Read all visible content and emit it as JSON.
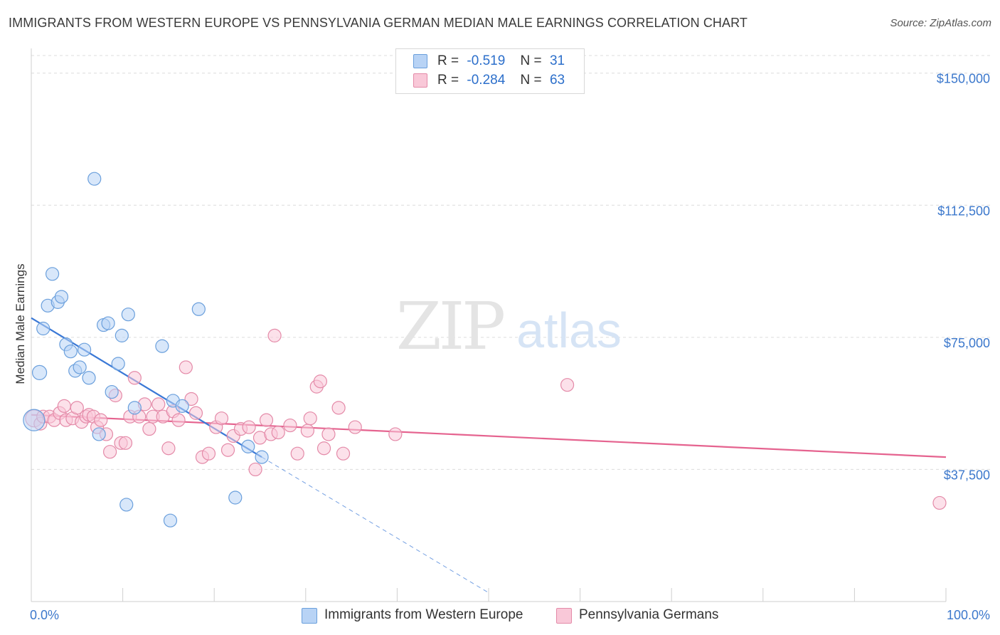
{
  "title": "IMMIGRANTS FROM WESTERN EUROPE VS PENNSYLVANIA GERMAN MEDIAN MALE EARNINGS CORRELATION CHART",
  "source": "Source: ZipAtlas.com",
  "watermark": {
    "zip": "ZIP",
    "atlas": "atlas"
  },
  "legend_top": [
    {
      "r_label": "R =",
      "r_value": "-0.519",
      "n_label": "N =",
      "n_value": "31"
    },
    {
      "r_label": "R =",
      "r_value": "-0.284",
      "n_label": "N =",
      "n_value": "63"
    }
  ],
  "colors": {
    "blue_fill": "#b8d3f5",
    "blue_stroke": "#6a9fdc",
    "blue_line": "#3a78d6",
    "pink_fill": "#f9c8d8",
    "pink_stroke": "#e48aa8",
    "pink_line": "#e5638f",
    "tick_label": "#3c78cc",
    "grid": "#dcdcdc"
  },
  "chart_data": {
    "type": "scatter",
    "title": "IMMIGRANTS FROM WESTERN EUROPE VS PENNSYLVANIA GERMAN MEDIAN MALE EARNINGS CORRELATION CHART",
    "xlabel": "",
    "ylabel": "Median Male Earnings",
    "xlim": [
      0,
      100
    ],
    "ylim": [
      0,
      155000
    ],
    "x_tick_labels": [
      "0.0%",
      "100.0%"
    ],
    "y_ticks": [
      37500,
      75000,
      112500,
      150000
    ],
    "y_tick_labels": [
      "$37,500",
      "$75,000",
      "$112,500",
      "$150,000"
    ],
    "grid": "horizontal dashed",
    "legend_position": "top-center and bottom",
    "series": [
      {
        "name": "Immigrants from Western Europe",
        "color": "#6a9fdc",
        "points": [
          [
            0.3,
            51500,
            15
          ],
          [
            0.9,
            65000,
            10
          ],
          [
            1.3,
            77500,
            9
          ],
          [
            1.8,
            84000,
            9
          ],
          [
            2.3,
            93000,
            9
          ],
          [
            2.9,
            85000,
            9
          ],
          [
            3.3,
            86500,
            9
          ],
          [
            3.8,
            73000,
            9
          ],
          [
            4.3,
            71000,
            9
          ],
          [
            4.8,
            65500,
            9
          ],
          [
            5.3,
            66500,
            9
          ],
          [
            5.8,
            71500,
            9
          ],
          [
            6.3,
            63500,
            9
          ],
          [
            6.9,
            120000,
            9
          ],
          [
            7.4,
            47500,
            9
          ],
          [
            7.9,
            78500,
            9
          ],
          [
            8.4,
            79000,
            9
          ],
          [
            8.8,
            59500,
            9
          ],
          [
            9.5,
            67500,
            9
          ],
          [
            9.9,
            75500,
            9
          ],
          [
            10.4,
            27500,
            9
          ],
          [
            10.6,
            81500,
            9
          ],
          [
            11.3,
            55000,
            9
          ],
          [
            14.3,
            72500,
            9
          ],
          [
            15.2,
            23000,
            9
          ],
          [
            15.5,
            57000,
            9
          ],
          [
            16.5,
            55500,
            9
          ],
          [
            18.3,
            83000,
            9
          ],
          [
            22.3,
            29500,
            9
          ],
          [
            23.7,
            44000,
            9
          ],
          [
            25.2,
            41000,
            9
          ]
        ],
        "trend": {
          "x": [
            0,
            25.2
          ],
          "y": [
            80500,
            41000
          ]
        },
        "trend_extension": {
          "x": [
            25.2,
            50
          ],
          "y": [
            41000,
            2500
          ]
        }
      },
      {
        "name": "Pennsylvania Germans",
        "color": "#e48aa8",
        "points": [
          [
            0.3,
            52000,
            12
          ],
          [
            1.0,
            50500,
            9
          ],
          [
            1.3,
            52500,
            9
          ],
          [
            2.0,
            52500,
            9
          ],
          [
            2.5,
            51500,
            9
          ],
          [
            3.1,
            53500,
            9
          ],
          [
            3.6,
            55500,
            9
          ],
          [
            3.8,
            51500,
            9
          ],
          [
            4.5,
            52000,
            9
          ],
          [
            5.0,
            55000,
            9
          ],
          [
            5.5,
            51000,
            9
          ],
          [
            6.0,
            52500,
            9
          ],
          [
            6.3,
            53000,
            9
          ],
          [
            6.8,
            52500,
            9
          ],
          [
            7.2,
            49500,
            9
          ],
          [
            7.6,
            51500,
            9
          ],
          [
            8.2,
            47500,
            9
          ],
          [
            8.6,
            42500,
            9
          ],
          [
            9.2,
            58500,
            9
          ],
          [
            9.8,
            45000,
            9
          ],
          [
            10.3,
            45000,
            9
          ],
          [
            10.8,
            52500,
            9
          ],
          [
            11.3,
            63500,
            9
          ],
          [
            11.8,
            52500,
            9
          ],
          [
            12.4,
            56000,
            9
          ],
          [
            12.9,
            49000,
            9
          ],
          [
            13.3,
            52500,
            9
          ],
          [
            13.9,
            56000,
            9
          ],
          [
            14.4,
            52500,
            9
          ],
          [
            15.0,
            43500,
            9
          ],
          [
            15.5,
            54000,
            9
          ],
          [
            16.1,
            51500,
            9
          ],
          [
            16.9,
            66500,
            9
          ],
          [
            17.5,
            57500,
            9
          ],
          [
            18.0,
            53500,
            9
          ],
          [
            18.7,
            41000,
            9
          ],
          [
            19.4,
            42000,
            9
          ],
          [
            20.2,
            49500,
            9
          ],
          [
            20.8,
            52000,
            9
          ],
          [
            21.5,
            43000,
            9
          ],
          [
            22.1,
            47000,
            9
          ],
          [
            22.9,
            49000,
            9
          ],
          [
            23.8,
            49500,
            9
          ],
          [
            24.5,
            37500,
            9
          ],
          [
            25.0,
            46500,
            9
          ],
          [
            25.7,
            51500,
            9
          ],
          [
            26.2,
            47500,
            9
          ],
          [
            26.6,
            75500,
            9
          ],
          [
            27.0,
            48000,
            9
          ],
          [
            28.3,
            50000,
            9
          ],
          [
            29.1,
            42000,
            9
          ],
          [
            30.2,
            48500,
            9
          ],
          [
            30.5,
            52000,
            9
          ],
          [
            31.2,
            61000,
            9
          ],
          [
            31.6,
            62500,
            9
          ],
          [
            32.0,
            43500,
            9
          ],
          [
            32.5,
            47500,
            9
          ],
          [
            33.6,
            55000,
            9
          ],
          [
            34.1,
            42000,
            9
          ],
          [
            35.4,
            49500,
            9
          ],
          [
            39.8,
            47500,
            9
          ],
          [
            58.6,
            61500,
            9
          ],
          [
            99.3,
            28000,
            9
          ]
        ],
        "trend": {
          "x": [
            0,
            100
          ],
          "y": [
            53000,
            41000
          ]
        }
      }
    ]
  }
}
